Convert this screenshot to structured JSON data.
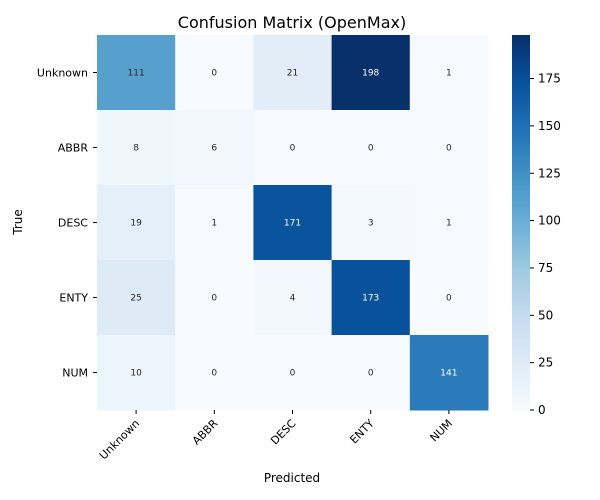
{
  "chart_data": {
    "type": "heatmap",
    "title": "Confusion Matrix (OpenMax)",
    "xlabel": "Predicted",
    "ylabel": "True",
    "x_categories": [
      "Unknown",
      "ABBR",
      "DESC",
      "ENTY",
      "NUM"
    ],
    "y_categories": [
      "Unknown",
      "ABBR",
      "DESC",
      "ENTY",
      "NUM"
    ],
    "values": [
      [
        111,
        0,
        21,
        198,
        1
      ],
      [
        8,
        6,
        0,
        0,
        0
      ],
      [
        19,
        1,
        171,
        3,
        1
      ],
      [
        25,
        0,
        4,
        173,
        0
      ],
      [
        10,
        0,
        0,
        0,
        141
      ]
    ],
    "colormap": "Blues",
    "vmin": 0,
    "vmax": 198,
    "colorbar_ticks": [
      0,
      25,
      50,
      75,
      100,
      125,
      150,
      175
    ],
    "colorbar_tick_labels": [
      "0",
      "25",
      "50",
      "75",
      "100",
      "125",
      "150",
      "175"
    ],
    "grid": false
  }
}
